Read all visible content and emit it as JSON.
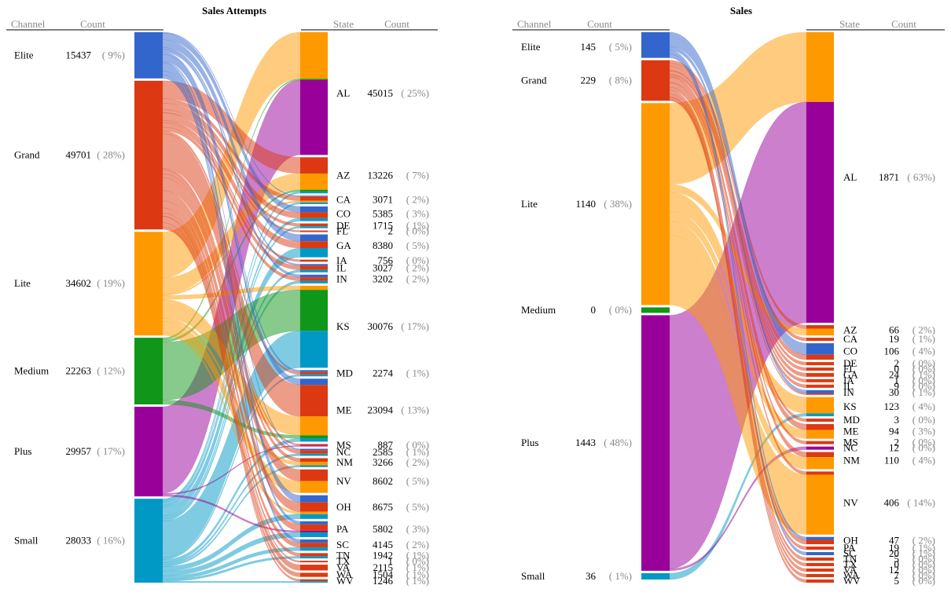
{
  "headers": {
    "channel": "Channel",
    "state": "State",
    "count": "Count"
  },
  "colors": {
    "Elite": "#3366cc",
    "Grand": "#dc3912",
    "Lite": "#ff9900",
    "Medium": "#109618",
    "Plus": "#990099",
    "Small": "#0099c6",
    "rule": "#000000",
    "header": "#888888"
  },
  "chart_data": [
    {
      "type": "sankey",
      "title": "Sales Attempts",
      "sources": [
        {
          "name": "Elite",
          "count": "15437",
          "pct": "( 9%)",
          "value": 15437
        },
        {
          "name": "Grand",
          "count": "49701",
          "pct": "( 28%)",
          "value": 49701
        },
        {
          "name": "Lite",
          "count": "34602",
          "pct": "( 19%)",
          "value": 34602
        },
        {
          "name": "Medium",
          "count": "22263",
          "pct": "( 12%)",
          "value": 22263
        },
        {
          "name": "Plus",
          "count": "29957",
          "pct": "( 17%)",
          "value": 29957
        },
        {
          "name": "Small",
          "count": "28033",
          "pct": "( 16%)",
          "value": 28033
        }
      ],
      "targets": [
        {
          "name": "AL",
          "count": "45015",
          "pct": "( 25%)",
          "value": 45015,
          "mix": {
            "Lite": 0.38,
            "Medium": 0.01,
            "Plus": 0.61
          }
        },
        {
          "name": "AZ",
          "count": "13226",
          "pct": "( 7%)",
          "value": 13226,
          "mix": {
            "Grand": 0.45,
            "Lite": 0.45,
            "Medium": 0.05,
            "Small": 0.05
          }
        },
        {
          "name": "CA",
          "count": "3071",
          "pct": "( 2%)",
          "value": 3071,
          "mix": {
            "Elite": 0.1,
            "Grand": 0.5,
            "Lite": 0.2,
            "Small": 0.2
          }
        },
        {
          "name": "CO",
          "count": "5385",
          "pct": "( 3%)",
          "value": 5385,
          "mix": {
            "Elite": 0.4,
            "Grand": 0.4,
            "Small": 0.2
          }
        },
        {
          "name": "DE",
          "count": "1715",
          "pct": "( 1%)",
          "value": 1715,
          "mix": {
            "Grand": 0.6,
            "Small": 0.4
          }
        },
        {
          "name": "FL",
          "count": "2",
          "pct": "( 0%)",
          "value": 2,
          "mix": {
            "Grand": 1
          }
        },
        {
          "name": "GA",
          "count": "8380",
          "pct": "( 5%)",
          "value": 8380,
          "mix": {
            "Elite": 0.3,
            "Grand": 0.3,
            "Small": 0.4
          }
        },
        {
          "name": "IA",
          "count": "756",
          "pct": "( 0%)",
          "value": 756,
          "mix": {
            "Grand": 1
          }
        },
        {
          "name": "IL",
          "count": "3027",
          "pct": "( 2%)",
          "value": 3027,
          "mix": {
            "Elite": 0.2,
            "Grand": 0.5,
            "Small": 0.3
          }
        },
        {
          "name": "IN",
          "count": "3202",
          "pct": "( 2%)",
          "value": 3202,
          "mix": {
            "Elite": 0.3,
            "Grand": 0.4,
            "Small": 0.3
          }
        },
        {
          "name": "KS",
          "count": "30076",
          "pct": "( 17%)",
          "value": 30076,
          "mix": {
            "Lite": 0.05,
            "Medium": 0.5,
            "Small": 0.45
          }
        },
        {
          "name": "MD",
          "count": "2274",
          "pct": "( 1%)",
          "value": 2274,
          "mix": {
            "Elite": 0.3,
            "Grand": 0.4,
            "Small": 0.3
          }
        },
        {
          "name": "ME",
          "count": "23094",
          "pct": "( 13%)",
          "value": 23094,
          "mix": {
            "Elite": 0.1,
            "Grand": 0.5,
            "Lite": 0.3,
            "Medium": 0.05,
            "Small": 0.05
          }
        },
        {
          "name": "MS",
          "count": "887",
          "pct": "( 0%)",
          "value": 887,
          "mix": {
            "Grand": 0.6,
            "Plus": 0.4
          }
        },
        {
          "name": "NC",
          "count": "2585",
          "pct": "( 1%)",
          "value": 2585,
          "mix": {
            "Elite": 0.2,
            "Grand": 0.5,
            "Small": 0.3
          }
        },
        {
          "name": "NM",
          "count": "3266",
          "pct": "( 2%)",
          "value": 3266,
          "mix": {
            "Grand": 0.4,
            "Lite": 0.4,
            "Small": 0.2
          }
        },
        {
          "name": "NV",
          "count": "8602",
          "pct": "( 5%)",
          "value": 8602,
          "mix": {
            "Grand": 0.5,
            "Lite": 0.5
          }
        },
        {
          "name": "OH",
          "count": "8675",
          "pct": "( 5%)",
          "value": 8675,
          "mix": {
            "Elite": 0.3,
            "Grand": 0.4,
            "Lite": 0.1,
            "Small": 0.2
          }
        },
        {
          "name": "PA",
          "count": "5802",
          "pct": "( 3%)",
          "value": 5802,
          "mix": {
            "Elite": 0.2,
            "Grand": 0.4,
            "Plus": 0.1,
            "Small": 0.3
          }
        },
        {
          "name": "SC",
          "count": "4145",
          "pct": "( 2%)",
          "value": 4145,
          "mix": {
            "Elite": 0.3,
            "Grand": 0.4,
            "Small": 0.3
          }
        },
        {
          "name": "TN",
          "count": "1942",
          "pct": "( 1%)",
          "value": 1942,
          "mix": {
            "Grand": 0.6,
            "Small": 0.4
          }
        },
        {
          "name": "TX",
          "count": "1",
          "pct": "( 0%)",
          "value": 1,
          "mix": {
            "Grand": 1
          }
        },
        {
          "name": "VA",
          "count": "2115",
          "pct": "( 1%)",
          "value": 2115,
          "mix": {
            "Grand": 1
          }
        },
        {
          "name": "WA",
          "count": "1504",
          "pct": "( 1%)",
          "value": 1504,
          "mix": {
            "Grand": 1
          }
        },
        {
          "name": "WV",
          "count": "1246",
          "pct": "( 1%)",
          "value": 1246,
          "mix": {
            "Grand": 0.6,
            "Small": 0.4
          }
        }
      ]
    },
    {
      "type": "sankey",
      "title": "Sales",
      "sources": [
        {
          "name": "Elite",
          "count": "145",
          "pct": "( 5%)",
          "value": 145
        },
        {
          "name": "Grand",
          "count": "229",
          "pct": "( 8%)",
          "value": 229
        },
        {
          "name": "Lite",
          "count": "1140",
          "pct": "( 38%)",
          "value": 1140
        },
        {
          "name": "Medium",
          "count": "0",
          "pct": "( 0%)",
          "value": 0
        },
        {
          "name": "Plus",
          "count": "1443",
          "pct": "( 48%)",
          "value": 1443
        },
        {
          "name": "Small",
          "count": "36",
          "pct": "( 1%)",
          "value": 36
        }
      ],
      "targets": [
        {
          "name": "AL",
          "count": "1871",
          "pct": "( 63%)",
          "value": 1871,
          "mix": {
            "Lite": 0.24,
            "Plus": 0.76
          }
        },
        {
          "name": "AZ",
          "count": "66",
          "pct": "( 2%)",
          "value": 66,
          "mix": {
            "Grand": 0.35,
            "Lite": 0.65
          }
        },
        {
          "name": "CA",
          "count": "19",
          "pct": "( 1%)",
          "value": 19,
          "mix": {
            "Grand": 1
          }
        },
        {
          "name": "CO",
          "count": "106",
          "pct": "( 4%)",
          "value": 106,
          "mix": {
            "Elite": 0.7,
            "Grand": 0.3
          }
        },
        {
          "name": "DE",
          "count": "2",
          "pct": "( 0%)",
          "value": 2,
          "mix": {
            "Grand": 1
          }
        },
        {
          "name": "FL",
          "count": "0",
          "pct": "( 0%)",
          "value": 0,
          "mix": {
            "Grand": 1
          }
        },
        {
          "name": "GA",
          "count": "24",
          "pct": "( 1%)",
          "value": 24,
          "mix": {
            "Grand": 1
          }
        },
        {
          "name": "IA",
          "count": "1",
          "pct": "( 0%)",
          "value": 1,
          "mix": {
            "Grand": 1
          }
        },
        {
          "name": "IL",
          "count": "9",
          "pct": "( 0%)",
          "value": 9,
          "mix": {
            "Grand": 1
          }
        },
        {
          "name": "IN",
          "count": "30",
          "pct": "( 1%)",
          "value": 30,
          "mix": {
            "Elite": 0.7,
            "Grand": 0.3
          }
        },
        {
          "name": "KS",
          "count": "123",
          "pct": "( 4%)",
          "value": 123,
          "mix": {
            "Lite": 0.85,
            "Small": 0.15
          }
        },
        {
          "name": "MD",
          "count": "3",
          "pct": "( 0%)",
          "value": 3,
          "mix": {
            "Grand": 1
          }
        },
        {
          "name": "ME",
          "count": "94",
          "pct": "( 3%)",
          "value": 94,
          "mix": {
            "Grand": 0.4,
            "Lite": 0.6
          }
        },
        {
          "name": "MS",
          "count": "2",
          "pct": "( 0%)",
          "value": 2,
          "mix": {
            "Grand": 1
          }
        },
        {
          "name": "NC",
          "count": "12",
          "pct": "( 0%)",
          "value": 12,
          "mix": {
            "Plus": 1
          }
        },
        {
          "name": "NM",
          "count": "110",
          "pct": "( 4%)",
          "value": 110,
          "mix": {
            "Grand": 0.3,
            "Lite": 0.7
          }
        },
        {
          "name": "NV",
          "count": "406",
          "pct": "( 14%)",
          "value": 406,
          "mix": {
            "Grand": 0.05,
            "Lite": 0.95
          }
        },
        {
          "name": "OH",
          "count": "47",
          "pct": "( 2%)",
          "value": 47,
          "mix": {
            "Elite": 0.4,
            "Grand": 0.6
          }
        },
        {
          "name": "PA",
          "count": "19",
          "pct": "( 1%)",
          "value": 19,
          "mix": {
            "Grand": 1
          }
        },
        {
          "name": "SC",
          "count": "20",
          "pct": "( 1%)",
          "value": 20,
          "mix": {
            "Elite": 1
          }
        },
        {
          "name": "TN",
          "count": "5",
          "pct": "( 0%)",
          "value": 5,
          "mix": {
            "Grand": 1
          }
        },
        {
          "name": "TX",
          "count": "0",
          "pct": "( 0%)",
          "value": 0,
          "mix": {
            "Grand": 1
          }
        },
        {
          "name": "VA",
          "count": "12",
          "pct": "( 0%)",
          "value": 12,
          "mix": {
            "Grand": 1
          }
        },
        {
          "name": "WA",
          "count": "7",
          "pct": "( 0%)",
          "value": 7,
          "mix": {
            "Grand": 1
          }
        },
        {
          "name": "WV",
          "count": "5",
          "pct": "( 0%)",
          "value": 5,
          "mix": {
            "Grand": 1
          }
        }
      ]
    }
  ]
}
